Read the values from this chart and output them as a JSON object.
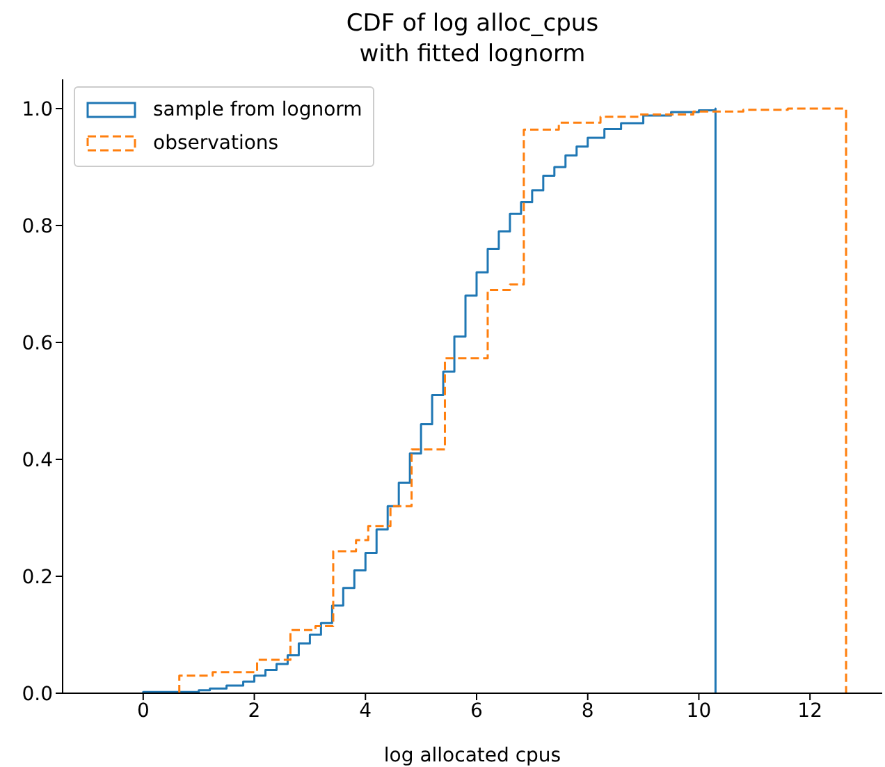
{
  "chart_data": {
    "type": "step",
    "title": "CDF of log alloc_cpus\nwith fitted lognorm",
    "xlabel": "log allocated cpus",
    "xlim": [
      -1.45,
      13.3
    ],
    "xticks": [
      0,
      2,
      4,
      6,
      8,
      10,
      12
    ],
    "ylim": [
      0,
      1.05
    ],
    "yticks": [
      {
        "value": 0,
        "label": "0.0"
      },
      {
        "value": 0.2,
        "label": "0.2"
      },
      {
        "value": 0.4,
        "label": "0.4"
      },
      {
        "value": 0.6,
        "label": "0.6"
      },
      {
        "value": 0.8,
        "label": "0.8"
      },
      {
        "value": 1.0,
        "label": "1.0"
      }
    ],
    "grid": false,
    "legend": "top left",
    "series": [
      {
        "name": "sample from lognorm",
        "color": "#1f77b4",
        "line_style": "solid",
        "x": [
          0,
          0,
          1.0,
          1.2,
          1.5,
          1.8,
          2.0,
          2.2,
          2.4,
          2.6,
          2.8,
          3.0,
          3.2,
          3.4,
          3.6,
          3.8,
          4.0,
          4.2,
          4.4,
          4.6,
          4.8,
          5.0,
          5.2,
          5.4,
          5.6,
          5.8,
          6.0,
          6.2,
          6.4,
          6.6,
          6.8,
          7.0,
          7.2,
          7.4,
          7.6,
          7.8,
          8.0,
          8.3,
          8.6,
          9.0,
          9.5,
          10.0,
          10.3,
          10.3
        ],
        "values": [
          0,
          0.002,
          0.005,
          0.008,
          0.013,
          0.02,
          0.03,
          0.04,
          0.05,
          0.065,
          0.085,
          0.1,
          0.12,
          0.15,
          0.18,
          0.21,
          0.24,
          0.28,
          0.32,
          0.36,
          0.41,
          0.46,
          0.51,
          0.55,
          0.61,
          0.68,
          0.72,
          0.76,
          0.79,
          0.82,
          0.84,
          0.86,
          0.885,
          0.9,
          0.92,
          0.935,
          0.95,
          0.965,
          0.975,
          0.988,
          0.994,
          0.997,
          1.0,
          0
        ]
      },
      {
        "name": "observations",
        "color": "#ff7f0e",
        "line_style": "dashed",
        "x": [
          0.65,
          0.65,
          1.25,
          2.05,
          2.65,
          3.1,
          3.42,
          3.83,
          4.05,
          4.45,
          4.83,
          5.43,
          6.2,
          6.6,
          6.85,
          7.48,
          8.23,
          8.93,
          9.9,
          10.8,
          11.6,
          12.65,
          12.65
        ],
        "values": [
          0,
          0.03,
          0.036,
          0.057,
          0.108,
          0.115,
          0.243,
          0.262,
          0.286,
          0.32,
          0.417,
          0.573,
          0.69,
          0.699,
          0.964,
          0.976,
          0.986,
          0.99,
          0.995,
          0.998,
          1.0,
          1.0,
          0
        ]
      }
    ]
  }
}
